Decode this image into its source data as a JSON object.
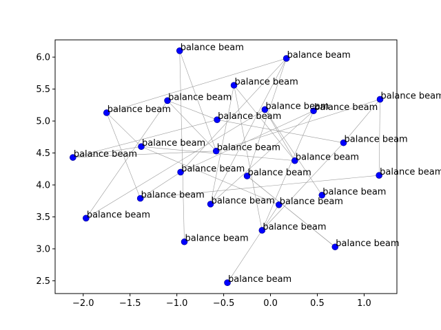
{
  "chart_data": {
    "type": "scatter",
    "title": "",
    "xlabel": "",
    "ylabel": "",
    "xlim": [
      -2.3,
      1.35
    ],
    "ylim": [
      2.3,
      6.27
    ],
    "xticks": [
      -2.0,
      -1.5,
      -1.0,
      -0.5,
      0.0,
      0.5,
      1.0
    ],
    "xtick_labels": [
      "−2.0",
      "−1.5",
      "−1.0",
      "−0.5",
      "0.0",
      "0.5",
      "1.0"
    ],
    "yticks": [
      2.5,
      3.0,
      3.5,
      4.0,
      4.5,
      5.0,
      5.5,
      6.0
    ],
    "ytick_labels": [
      "2.5",
      "3.0",
      "3.5",
      "4.0",
      "4.5",
      "5.0",
      "5.5",
      "6.0"
    ],
    "grid": false,
    "marker_color": "#0000ff",
    "edge_color": "#999999",
    "points": [
      {
        "x": -0.97,
        "y": 6.1,
        "label": "balance beam"
      },
      {
        "x": 0.17,
        "y": 5.98,
        "label": "balance beam"
      },
      {
        "x": -0.39,
        "y": 5.56,
        "label": "balance beam"
      },
      {
        "x": 1.17,
        "y": 5.34,
        "label": "balance beam"
      },
      {
        "x": -1.1,
        "y": 5.32,
        "label": "balance beam"
      },
      {
        "x": -0.06,
        "y": 5.18,
        "label": "balance beam"
      },
      {
        "x": 0.46,
        "y": 5.16,
        "label": "balance beam"
      },
      {
        "x": -1.75,
        "y": 5.13,
        "label": "balance beam"
      },
      {
        "x": -0.57,
        "y": 5.02,
        "label": "balance beam"
      },
      {
        "x": 0.78,
        "y": 4.66,
        "label": "balance beam"
      },
      {
        "x": -1.38,
        "y": 4.6,
        "label": "balance beam"
      },
      {
        "x": -0.58,
        "y": 4.53,
        "label": "balance beam"
      },
      {
        "x": -2.11,
        "y": 4.43,
        "label": "balance beam"
      },
      {
        "x": 0.26,
        "y": 4.38,
        "label": "balance beam"
      },
      {
        "x": -0.96,
        "y": 4.2,
        "label": "balance beam"
      },
      {
        "x": 1.16,
        "y": 4.15,
        "label": "balance beam"
      },
      {
        "x": -0.25,
        "y": 4.14,
        "label": "balance beam"
      },
      {
        "x": 0.55,
        "y": 3.84,
        "label": "balance beam"
      },
      {
        "x": -1.39,
        "y": 3.79,
        "label": "balance beam"
      },
      {
        "x": -0.64,
        "y": 3.7,
        "label": "balance beam"
      },
      {
        "x": 0.09,
        "y": 3.69,
        "label": "balance beam"
      },
      {
        "x": -1.97,
        "y": 3.48,
        "label": "balance beam"
      },
      {
        "x": -0.09,
        "y": 3.29,
        "label": "balance beam"
      },
      {
        "x": -0.92,
        "y": 3.11,
        "label": "balance beam"
      },
      {
        "x": 0.69,
        "y": 3.03,
        "label": "balance beam"
      },
      {
        "x": -0.46,
        "y": 2.47,
        "label": "balance beam"
      }
    ],
    "edges": [
      [
        0,
        23
      ],
      [
        0,
        11
      ],
      [
        1,
        19
      ],
      [
        1,
        16
      ],
      [
        1,
        14
      ],
      [
        2,
        19
      ],
      [
        2,
        22
      ],
      [
        3,
        15
      ],
      [
        3,
        9
      ],
      [
        4,
        8
      ],
      [
        4,
        21
      ],
      [
        5,
        21
      ],
      [
        5,
        17
      ],
      [
        5,
        13
      ],
      [
        6,
        19
      ],
      [
        6,
        14
      ],
      [
        7,
        10
      ],
      [
        7,
        18
      ],
      [
        8,
        12
      ],
      [
        8,
        9
      ],
      [
        9,
        22
      ],
      [
        10,
        12
      ],
      [
        10,
        13
      ],
      [
        10,
        20
      ],
      [
        11,
        3
      ],
      [
        12,
        11
      ],
      [
        14,
        18
      ],
      [
        16,
        24
      ],
      [
        18,
        15
      ],
      [
        20,
        25
      ],
      [
        22,
        6
      ],
      [
        24,
        16
      ],
      [
        2,
        13
      ],
      [
        4,
        11
      ],
      [
        7,
        1
      ]
    ]
  }
}
